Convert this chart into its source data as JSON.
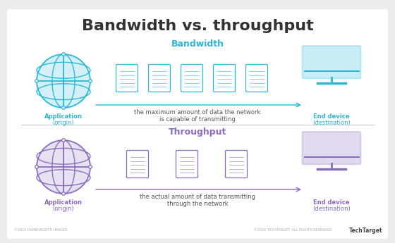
{
  "title": "Bandwidth vs. throughput",
  "title_fontsize": 16,
  "title_color": "#333333",
  "title_fontweight": "bold",
  "bg_color": "#ebebeb",
  "card_bg": "#ffffff",
  "bandwidth_label": "Bandwidth",
  "bandwidth_color": "#29b8d8",
  "throughput_label": "Throughput",
  "throughput_color": "#8b6bbf",
  "app_label_bold": "Application",
  "app_label_regular": "(origin)",
  "device_label_bold": "End device",
  "device_label_regular": "(destination)",
  "bandwidth_desc": "the maximum amount of data the network\nis capable of transmitting",
  "throughput_desc": "the actual amount of data transmitting\nthrough the network",
  "footer_left": "©2022 HAMBURGETTI IMAGES",
  "footer_right": "©2022 TECHTARGET. ALL RIGHTS RESERVED",
  "footer_brand": "TechTarget",
  "bandwidth_packets": 5,
  "throughput_packets": 3,
  "section_label_fontsize": 9,
  "desc_fontsize": 6,
  "entity_label_fontsize": 6
}
